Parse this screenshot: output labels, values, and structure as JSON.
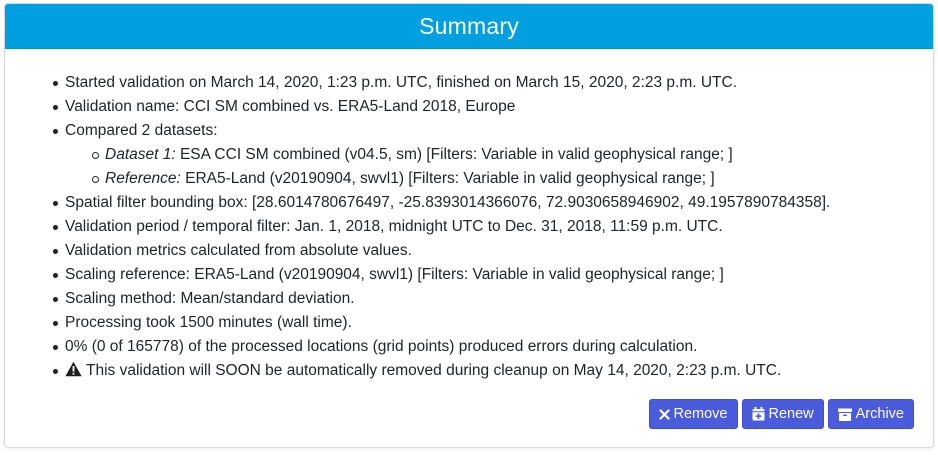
{
  "header": {
    "title": "Summary"
  },
  "summary": {
    "started": "Started validation on March 14, 2020, 1:23 p.m. UTC, finished on March 15, 2020, 2:23 p.m. UTC.",
    "name": "Validation name: CCI SM combined vs. ERA5-Land 2018, Europe",
    "compared": "Compared 2 datasets:",
    "dataset1_label": "Dataset 1:",
    "dataset1_text": " ESA CCI SM combined (v04.5, sm) [Filters: Variable in valid geophysical range; ]",
    "reference_label": "Reference:",
    "reference_text": " ERA5-Land (v20190904, swvl1) [Filters: Variable in valid geophysical range; ]",
    "bbox": "Spatial filter bounding box: [28.6014780676497, -25.8393014366076, 72.9030658946902, 49.1957890784358].",
    "period": "Validation period / temporal filter: Jan. 1, 2018, midnight UTC to Dec. 31, 2018, 11:59 p.m. UTC.",
    "metrics": "Validation metrics calculated from absolute values.",
    "scaling_ref": "Scaling reference: ERA5-Land (v20190904, swvl1) [Filters: Variable in valid geophysical range; ]",
    "scaling_method": "Scaling method: Mean/standard deviation.",
    "processing": "Processing took 1500 minutes (wall time).",
    "errors": "0% (0 of 165778) of the processed locations (grid points) produced errors during calculation.",
    "warning": "This validation will SOON be automatically removed during cleanup on May 14, 2020, 2:23 p.m. UTC."
  },
  "buttons": {
    "remove": "Remove",
    "renew": "Renew",
    "archive": "Archive"
  },
  "icons": {
    "remove": "times-icon",
    "renew": "calendar-plus-icon",
    "archive": "archive-icon",
    "warning": "warning-triangle-icon"
  },
  "colors": {
    "header_bg": "#00a0e0",
    "button_bg": "#4a5bdc"
  }
}
